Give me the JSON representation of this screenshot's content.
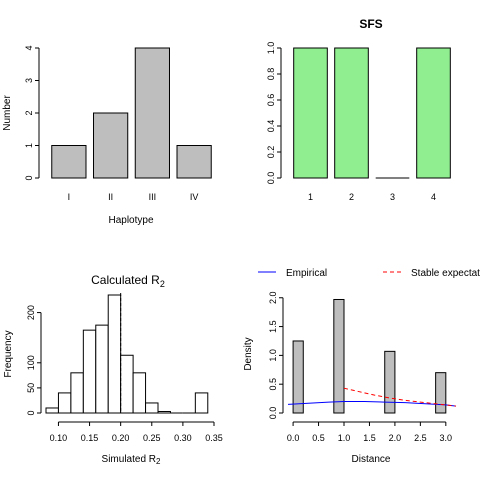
{
  "chart_data": [
    {
      "type": "bar",
      "title": "",
      "xlabel": "Haplotype",
      "ylabel": "Number",
      "categories": [
        "I",
        "II",
        "III",
        "IV"
      ],
      "values": [
        1,
        2,
        4,
        1
      ],
      "ylim": [
        0,
        4
      ],
      "yticks": [
        "0",
        "1",
        "2",
        "3",
        "4"
      ],
      "bar_color": "#bebebe"
    },
    {
      "type": "bar",
      "title": "SFS",
      "xlabel": "",
      "ylabel": "",
      "categories": [
        "1",
        "2",
        "3",
        "4"
      ],
      "values": [
        1,
        1,
        0,
        1
      ],
      "ylim": [
        0,
        1
      ],
      "yticks": [
        "0.0",
        "0.2",
        "0.4",
        "0.6",
        "0.8",
        "1.0"
      ],
      "bar_color": "#90ee90"
    },
    {
      "type": "bar",
      "title": "Calculated R",
      "title_sub": "2",
      "xlabel": "Simulated R",
      "xlabel_sub": "2",
      "ylabel": "Frequency",
      "bins": [
        {
          "x0": 0.08,
          "x1": 0.1,
          "count": 10
        },
        {
          "x0": 0.1,
          "x1": 0.12,
          "count": 40
        },
        {
          "x0": 0.12,
          "x1": 0.14,
          "count": 80
        },
        {
          "x0": 0.14,
          "x1": 0.16,
          "count": 165
        },
        {
          "x0": 0.16,
          "x1": 0.18,
          "count": 175
        },
        {
          "x0": 0.18,
          "x1": 0.2,
          "count": 235
        },
        {
          "x0": 0.2,
          "x1": 0.22,
          "count": 115
        },
        {
          "x0": 0.22,
          "x1": 0.24,
          "count": 80
        },
        {
          "x0": 0.24,
          "x1": 0.26,
          "count": 20
        },
        {
          "x0": 0.26,
          "x1": 0.28,
          "count": 3
        },
        {
          "x0": 0.28,
          "x1": 0.3,
          "count": 0
        },
        {
          "x0": 0.3,
          "x1": 0.32,
          "count": 0
        },
        {
          "x0": 0.32,
          "x1": 0.34,
          "count": 40
        }
      ],
      "observed_line": 0.2,
      "xlim": [
        0.08,
        0.35
      ],
      "ylim": [
        0,
        235
      ],
      "xticks": [
        0.1,
        0.15,
        0.2,
        0.25,
        0.3,
        0.35
      ],
      "xtick_labels": [
        "0.10",
        "0.15",
        "0.20",
        "0.25",
        "0.30",
        "0.35"
      ],
      "yticks": [
        0,
        50,
        100,
        200
      ],
      "ytick_labels": [
        "0",
        "50",
        "100",
        "200"
      ]
    },
    {
      "type": "bar",
      "title": "",
      "xlabel": "Distance",
      "ylabel": "Density",
      "bins": [
        {
          "x0": 0.0,
          "x1": 0.2,
          "density": 1.25
        },
        {
          "x0": 0.8,
          "x1": 1.0,
          "density": 1.97
        },
        {
          "x0": 1.8,
          "x1": 2.0,
          "density": 1.07
        },
        {
          "x0": 2.8,
          "x1": 3.0,
          "density": 0.7
        }
      ],
      "series": [
        {
          "name": "Empirical",
          "color": "#0000ff",
          "dash": "solid",
          "x": [
            -0.1,
            0.3,
            0.7,
            1.0,
            1.4,
            1.8,
            2.2,
            2.6,
            3.0,
            3.2
          ],
          "y": [
            0.15,
            0.17,
            0.19,
            0.2,
            0.2,
            0.19,
            0.18,
            0.16,
            0.14,
            0.12
          ]
        },
        {
          "name": "Stable expectation",
          "color": "#ff0000",
          "dash": "dashed",
          "x": [
            1.0,
            1.3,
            1.6,
            1.9,
            2.2,
            2.5,
            2.8,
            3.0,
            3.2
          ],
          "y": [
            0.43,
            0.37,
            0.31,
            0.26,
            0.22,
            0.19,
            0.16,
            0.14,
            0.12
          ]
        }
      ],
      "legend_position": "top",
      "xlim": [
        -0.1,
        3.2
      ],
      "ylim": [
        0,
        2.1
      ],
      "xticks": [
        0,
        0.5,
        1,
        1.5,
        2,
        2.5,
        3
      ],
      "xtick_labels": [
        "0.0",
        "0.5",
        "1.0",
        "1.5",
        "2.0",
        "2.5",
        "3.0"
      ],
      "yticks": [
        0,
        0.5,
        1,
        1.5,
        2
      ],
      "ytick_labels": [
        "0.0",
        "0.5",
        "1.0",
        "1.5",
        "2.0"
      ]
    }
  ]
}
